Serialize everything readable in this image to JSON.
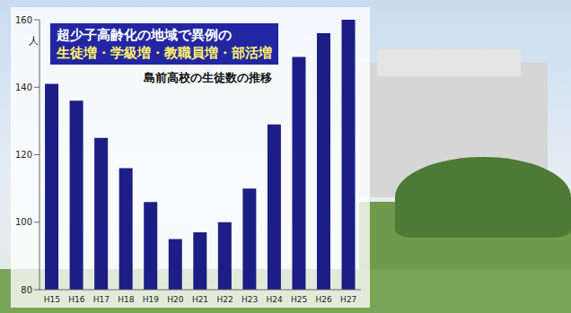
{
  "chart_data": {
    "type": "bar",
    "title": [
      "超少子高齢化の地域で異例の",
      "生徒増・学級増・教職員増・部活増"
    ],
    "subtitle": "島前高校の生徒数の推移",
    "y_label": "人",
    "categories": [
      "H15",
      "H16",
      "H17",
      "H18",
      "H19",
      "H20",
      "H21",
      "H22",
      "H23",
      "H24",
      "H25",
      "H26",
      "H27"
    ],
    "values": [
      141,
      136,
      125,
      116,
      106,
      95,
      97,
      100,
      110,
      129,
      149,
      156,
      160
    ],
    "color": "#1c1e86",
    "ylim": [
      80,
      160
    ],
    "yticks": [
      80,
      100,
      120,
      140,
      160
    ],
    "grid": false
  }
}
